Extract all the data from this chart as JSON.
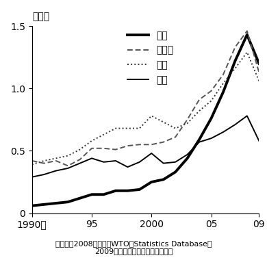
{
  "years": [
    1990,
    1991,
    1992,
    1993,
    1994,
    1995,
    1996,
    1997,
    1998,
    1999,
    2000,
    2001,
    2002,
    2003,
    2004,
    2005,
    2006,
    2007,
    2008,
    2009
  ],
  "china": [
    0.06,
    0.07,
    0.08,
    0.09,
    0.12,
    0.15,
    0.15,
    0.18,
    0.18,
    0.19,
    0.25,
    0.27,
    0.33,
    0.44,
    0.59,
    0.76,
    0.97,
    1.22,
    1.43,
    1.2
  ],
  "germany": [
    0.42,
    0.4,
    0.42,
    0.38,
    0.43,
    0.52,
    0.52,
    0.51,
    0.54,
    0.55,
    0.55,
    0.57,
    0.61,
    0.75,
    0.91,
    0.98,
    1.11,
    1.33,
    1.46,
    1.13
  ],
  "usa": [
    0.39,
    0.42,
    0.44,
    0.46,
    0.51,
    0.58,
    0.63,
    0.68,
    0.68,
    0.68,
    0.78,
    0.73,
    0.68,
    0.72,
    0.82,
    0.9,
    1.04,
    1.16,
    1.29,
    1.06
  ],
  "japan": [
    0.29,
    0.31,
    0.34,
    0.36,
    0.4,
    0.44,
    0.41,
    0.42,
    0.37,
    0.41,
    0.48,
    0.4,
    0.41,
    0.47,
    0.57,
    0.6,
    0.65,
    0.71,
    0.78,
    0.58
  ],
  "ylim": [
    0,
    1.5
  ],
  "yticks": [
    0,
    0.5,
    1.0,
    1.5
  ],
  "ylabel": "兆ドル",
  "xtick_labels": [
    "1990年",
    "95",
    "2000",
    "05",
    "09"
  ],
  "xtick_positions": [
    1990,
    1995,
    2000,
    2005,
    2009
  ],
  "legend_labels": [
    "中国",
    "ドイツ",
    "米国",
    "日本"
  ],
  "caption_line1": "（出所）2008年まではWTO、Statistics Database、",
  "caption_line2": "2009年は各国の通関統計より作成",
  "china_color": "#000000",
  "germany_color": "#555555",
  "usa_color": "#333333",
  "japan_color": "#000000",
  "china_lw": 2.8,
  "germany_lw": 1.4,
  "usa_lw": 1.4,
  "japan_lw": 1.4
}
